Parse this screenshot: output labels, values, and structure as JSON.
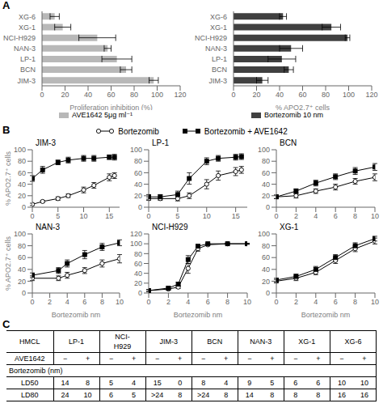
{
  "chart_data": [
    {
      "type": "bar",
      "orientation": "horizontal",
      "annotations": [
        "A"
      ],
      "categories": [
        "JIM-3",
        "BCN",
        "LP-1",
        "NAN-3",
        "NCI-H929",
        "XG-1",
        "XG-6"
      ],
      "series": [
        {
          "name": "AVE1642 5μg ml⁻¹",
          "color": "#b8b8b8",
          "values": [
            97,
            73,
            65,
            57,
            48,
            18,
            11
          ],
          "errors": [
            4,
            5,
            13,
            3,
            16,
            7,
            4
          ]
        }
      ],
      "xlabel": "Proliferation inhibition (%)",
      "xlim": [
        0,
        120
      ],
      "xticks": [
        0,
        20,
        40,
        60,
        80,
        100,
        120
      ],
      "legend": "bottom"
    },
    {
      "type": "bar",
      "orientation": "horizontal",
      "categories": [
        "JIM-3",
        "BCN",
        "LP-1",
        "NAN-3",
        "NCI-H929",
        "XG-1",
        "XG-6"
      ],
      "series": [
        {
          "name": "Bortezomib 10 nm",
          "color": "#404040",
          "values": [
            25,
            48,
            42,
            50,
            99,
            85,
            43
          ],
          "errors": [
            5,
            4,
            12,
            10,
            2,
            8,
            3
          ]
        }
      ],
      "xlabel": "% APO2.7⁺ cells",
      "xlim": [
        0,
        120
      ],
      "xticks": [
        0,
        20,
        40,
        60,
        80,
        100,
        120
      ],
      "legend": "bottom"
    },
    {
      "type": "line",
      "annotations": [
        "B"
      ],
      "legend": "top",
      "title": "JIM-3",
      "ylabel": "% APO2.7⁺ cells",
      "xlim": [
        0,
        17
      ],
      "xticks": [
        0,
        5,
        10,
        15
      ],
      "ylim": [
        0,
        100
      ],
      "yticks": [
        0,
        20,
        40,
        60,
        80,
        100
      ],
      "series": [
        {
          "name": "Bortezomib",
          "color": "#000000",
          "marker": "open_circle",
          "x": [
            0,
            2,
            5,
            7,
            10,
            12,
            15,
            16
          ],
          "values": [
            5,
            10,
            15,
            20,
            30,
            38,
            52,
            55
          ],
          "errors": [
            2,
            2,
            3,
            3,
            5,
            5,
            6,
            5
          ]
        },
        {
          "name": "Bortezomib + AVE1642",
          "color": "#000000",
          "marker": "square",
          "x": [
            0,
            2,
            5,
            7,
            10,
            12,
            15,
            16
          ],
          "values": [
            50,
            65,
            78,
            82,
            85,
            85,
            87,
            87
          ],
          "errors": [
            5,
            6,
            4,
            5,
            5,
            5,
            4,
            5
          ]
        }
      ]
    },
    {
      "type": "line",
      "title": "LP-1",
      "xlim": [
        0,
        17
      ],
      "xticks": [
        0,
        5,
        10,
        15
      ],
      "ylim": [
        0,
        100
      ],
      "yticks": [
        0,
        20,
        40,
        60,
        80,
        100
      ],
      "series": [
        {
          "name": "Bortezomib",
          "color": "#000000",
          "marker": "open_circle",
          "x": [
            0,
            2,
            5,
            7,
            10,
            12,
            15,
            16
          ],
          "values": [
            15,
            15,
            15,
            20,
            40,
            55,
            62,
            65
          ],
          "errors": [
            3,
            3,
            4,
            5,
            8,
            8,
            7,
            6
          ]
        },
        {
          "name": "Bortezomib + AVE1642",
          "color": "#000000",
          "marker": "square",
          "x": [
            0,
            2,
            5,
            7,
            10,
            12,
            15,
            16
          ],
          "values": [
            18,
            18,
            22,
            50,
            80,
            85,
            87,
            88
          ],
          "errors": [
            4,
            4,
            6,
            10,
            6,
            5,
            5,
            5
          ]
        }
      ]
    },
    {
      "type": "line",
      "title": "BCN",
      "xlim": [
        0,
        10
      ],
      "xticks": [
        0,
        2,
        4,
        6,
        8,
        10
      ],
      "ylim": [
        0,
        100
      ],
      "yticks": [
        0,
        20,
        40,
        60,
        80,
        100
      ],
      "series": [
        {
          "name": "Bortezomib",
          "color": "#000000",
          "marker": "open_circle",
          "x": [
            0,
            2,
            4,
            6,
            8,
            10
          ],
          "values": [
            18,
            20,
            28,
            35,
            45,
            52
          ],
          "errors": [
            3,
            4,
            4,
            5,
            5,
            6
          ]
        },
        {
          "name": "Bortezomib + AVE1642",
          "color": "#000000",
          "marker": "square",
          "x": [
            0,
            2,
            4,
            6,
            8,
            10
          ],
          "values": [
            18,
            28,
            42,
            53,
            63,
            70
          ],
          "errors": [
            3,
            4,
            5,
            5,
            6,
            6
          ]
        }
      ]
    },
    {
      "type": "line",
      "title": "NAN-3",
      "xlabel": "Bortezomib nm",
      "ylabel": "% APO2.7⁺ cells",
      "xlim": [
        0,
        10
      ],
      "xticks": [
        0,
        2,
        4,
        6,
        8,
        10
      ],
      "ylim": [
        0,
        100
      ],
      "yticks": [
        0,
        20,
        40,
        60,
        80,
        100
      ],
      "series": [
        {
          "name": "Bortezomib",
          "color": "#000000",
          "marker": "open_circle",
          "x": [
            0,
            3,
            4,
            6,
            8,
            10
          ],
          "values": [
            25,
            25,
            30,
            38,
            50,
            58
          ],
          "errors": [
            4,
            4,
            5,
            5,
            6,
            7
          ]
        },
        {
          "name": "Bortezomib + AVE1642",
          "color": "#000000",
          "marker": "square",
          "x": [
            0,
            3,
            4,
            6,
            8,
            10
          ],
          "values": [
            30,
            38,
            50,
            65,
            78,
            85
          ],
          "errors": [
            4,
            5,
            6,
            7,
            6,
            5
          ]
        }
      ]
    },
    {
      "type": "line",
      "title": "NCI-H929",
      "xlabel": "Bortezomib nm",
      "xlim": [
        0,
        10
      ],
      "xticks": [
        0,
        2,
        4,
        6,
        8,
        10
      ],
      "ylim": [
        0,
        120
      ],
      "yticks": [
        0,
        20,
        40,
        60,
        80,
        100,
        120
      ],
      "series": [
        {
          "name": "Bortezomib",
          "color": "#000000",
          "marker": "open_circle",
          "x": [
            0,
            2,
            3,
            4,
            5,
            6,
            8,
            10
          ],
          "values": [
            5,
            8,
            12,
            50,
            90,
            98,
            100,
            100
          ],
          "errors": [
            2,
            2,
            3,
            10,
            5,
            2,
            1,
            1
          ]
        },
        {
          "name": "Bortezomib + AVE1642",
          "color": "#000000",
          "marker": "square",
          "x": [
            0,
            2,
            3,
            4,
            5,
            6,
            8,
            10
          ],
          "values": [
            5,
            10,
            18,
            68,
            95,
            100,
            100,
            100
          ],
          "errors": [
            2,
            3,
            4,
            8,
            3,
            1,
            1,
            1
          ]
        }
      ]
    },
    {
      "type": "line",
      "title": "XG-1",
      "xlabel": "Bortezomib nm",
      "xlim": [
        0,
        10
      ],
      "xticks": [
        0,
        2,
        4,
        6,
        8,
        10
      ],
      "ylim": [
        0,
        100
      ],
      "yticks": [
        0,
        20,
        40,
        60,
        80,
        100
      ],
      "series": [
        {
          "name": "Bortezomib",
          "color": "#000000",
          "marker": "open_circle",
          "x": [
            0,
            2,
            4,
            6,
            8,
            10
          ],
          "values": [
            20,
            25,
            35,
            55,
            75,
            88
          ],
          "errors": [
            3,
            4,
            4,
            5,
            5,
            5
          ]
        },
        {
          "name": "Bortezomib + AVE1642",
          "color": "#000000",
          "marker": "square",
          "x": [
            0,
            2,
            4,
            6,
            8,
            10
          ],
          "values": [
            22,
            28,
            40,
            60,
            80,
            92
          ],
          "errors": [
            3,
            4,
            5,
            5,
            5,
            4
          ]
        }
      ]
    },
    {
      "type": "table",
      "annotations": [
        "C"
      ],
      "row_header": "HMCL",
      "col_groups": [
        "LP-1",
        "NCI-\nH929",
        "JIM-3",
        "BCN",
        "NAN-3",
        "XG-1",
        "XG-6"
      ],
      "rows": [
        {
          "label": "AVE1642",
          "values": [
            "−",
            "+",
            "−",
            "+",
            "−",
            "+",
            "−",
            "+",
            "−",
            "+",
            "−",
            "+",
            "−",
            "+"
          ]
        },
        {
          "label": "Bortezomib (nm)"
        },
        {
          "label": "LD50",
          "values": [
            "14",
            "8",
            "5",
            "4",
            "15",
            "0",
            "8",
            "4",
            "9",
            "5",
            "6",
            "6",
            "10",
            "10"
          ]
        },
        {
          "label": "LD80",
          "values": [
            "24",
            "10",
            "6",
            "5",
            ">24",
            "8",
            ">24",
            "8",
            "14",
            "8",
            "8",
            "8",
            "16",
            "16"
          ]
        }
      ]
    }
  ]
}
